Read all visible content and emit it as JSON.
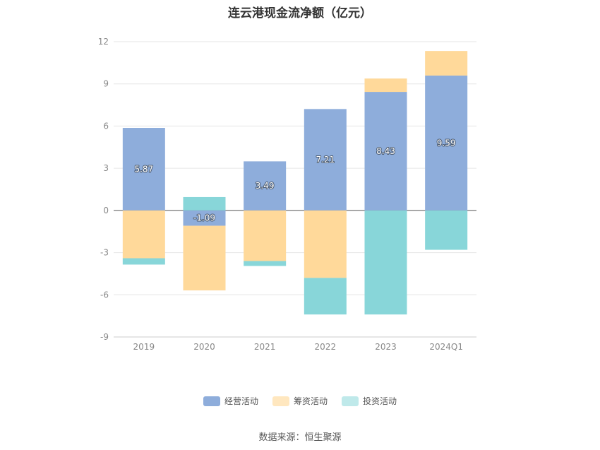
{
  "chart_data": {
    "type": "bar",
    "stacked": true,
    "title": "连云港现金流净额（亿元）",
    "categories": [
      "2019",
      "2020",
      "2021",
      "2022",
      "2023",
      "2024Q1"
    ],
    "series": [
      {
        "name": "经营活动",
        "color": "#8eaddb",
        "values": [
          5.87,
          -1.09,
          3.49,
          7.21,
          8.43,
          9.59
        ],
        "labels": [
          "5.87",
          "-1.09",
          "3.49",
          "7.21",
          "8.43",
          "9.59"
        ]
      },
      {
        "name": "筹资活动",
        "color": "#ffd99a",
        "values": [
          -3.4,
          -4.6,
          -3.6,
          -4.8,
          0.95,
          1.75
        ]
      },
      {
        "name": "投资活动",
        "color": "#88d6d9",
        "values": [
          -0.45,
          0.95,
          -0.35,
          -2.6,
          -7.4,
          -2.8
        ]
      }
    ],
    "yticks": [
      "12",
      "9",
      "6",
      "3",
      "0",
      "-3",
      "-6",
      "-9"
    ],
    "ylim": [
      -9,
      12
    ],
    "grid": true,
    "legend_position": "bottom"
  },
  "source": "数据来源：恒生聚源"
}
